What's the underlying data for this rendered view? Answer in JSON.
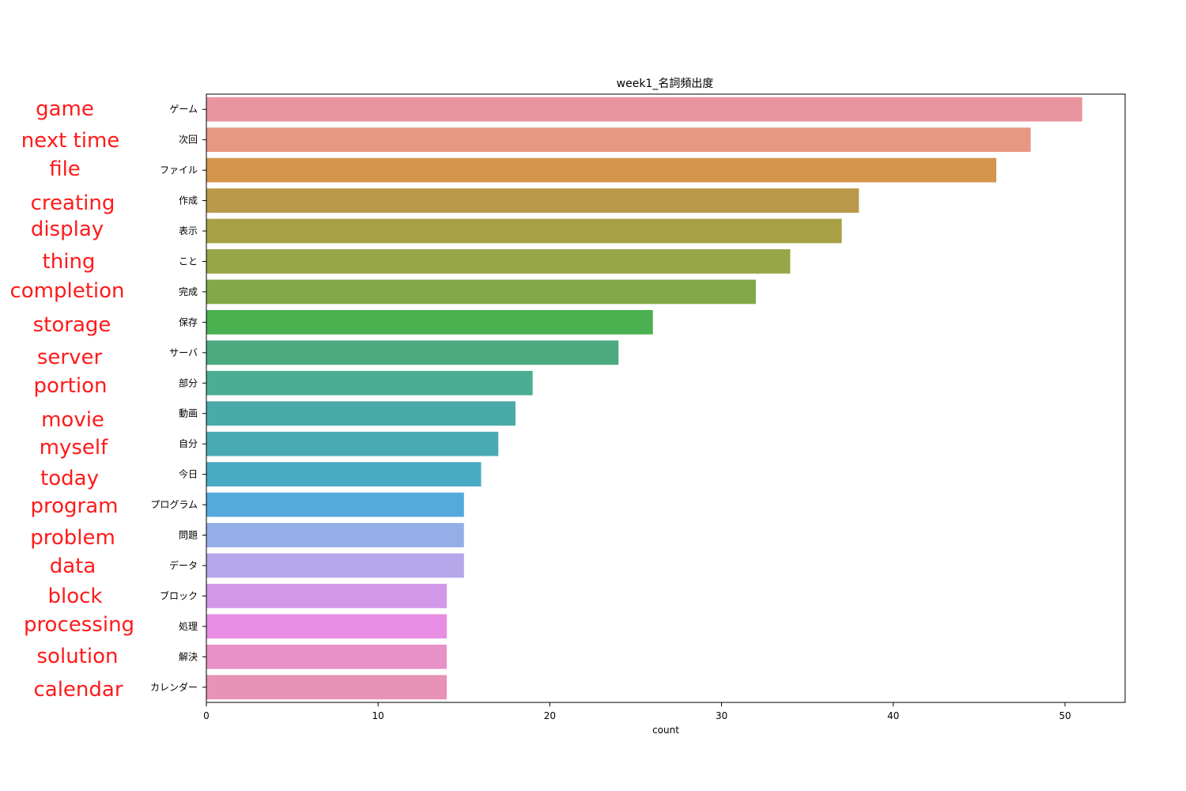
{
  "chart_data": {
    "type": "bar",
    "orientation": "horizontal",
    "title": "week1_名詞頻出度",
    "xlabel": "count",
    "ylabel": "",
    "xlim": [
      0,
      53.5
    ],
    "xticks": [
      0,
      10,
      20,
      30,
      40,
      50
    ],
    "grid": false,
    "categories": [
      "ゲーム",
      "次回",
      "ファイル",
      "作成",
      "表示",
      "こと",
      "完成",
      "保存",
      "サーバ",
      "部分",
      "動画",
      "自分",
      "今日",
      "プログラム",
      "問題",
      "データ",
      "ブロック",
      "処理",
      "解決",
      "カレンダー"
    ],
    "values": [
      51,
      48,
      46,
      38,
      37,
      34,
      32,
      26,
      24,
      19,
      18,
      17,
      16,
      15,
      15,
      15,
      14,
      14,
      14,
      14
    ],
    "colors": [
      "#e8959e",
      "#e79782",
      "#d4944c",
      "#ba9a4a",
      "#a8a045",
      "#97a646",
      "#81a94a",
      "#4ab050",
      "#4caa80",
      "#4bae93",
      "#4aaaa8",
      "#4aaab4",
      "#4aa9c3",
      "#55aadd",
      "#96aee7",
      "#b6a6ea",
      "#d198e8",
      "#e78de3",
      "#e891c9",
      "#e892b8"
    ],
    "annotations": [
      "game",
      "next time",
      "file",
      "creating",
      "display",
      "thing",
      "completion",
      "storage",
      "server",
      "portion",
      "movie",
      "myself",
      "today",
      "program",
      "problem",
      "data",
      "block",
      "processing",
      "solution",
      "calendar"
    ],
    "annotation_color": "#ff1a1a"
  }
}
